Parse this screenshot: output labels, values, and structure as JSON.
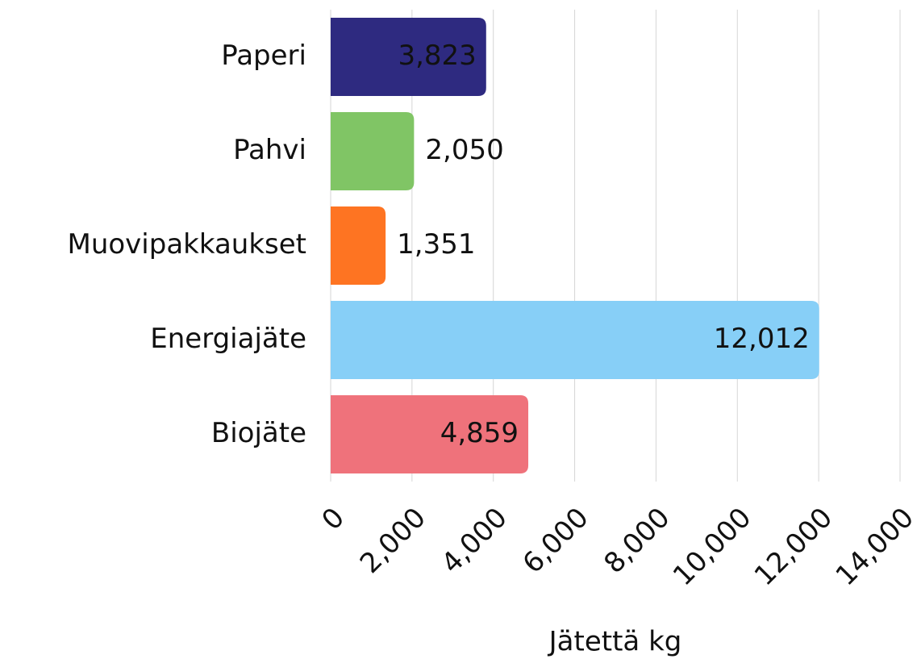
{
  "chart_data": {
    "type": "bar",
    "orientation": "horizontal",
    "categories": [
      "Paperi",
      "Pahvi",
      "Muovipakkaukset",
      "Energiajäte",
      "Biojäte"
    ],
    "values": [
      3823,
      2050,
      1351,
      12012,
      4859
    ],
    "value_labels": [
      "3,823",
      "2,050",
      "1,351",
      "12,012",
      "4,859"
    ],
    "colors": [
      "#2e2a80",
      "#80c565",
      "#fe7422",
      "#87cff7",
      "#ef727b"
    ],
    "xlabel": "Jätettä kg",
    "xlim": [
      0,
      14000
    ],
    "xticks": [
      0,
      {
        "value": 2000,
        "label": "2,000"
      },
      {
        "value": 4000,
        "label": "4,000"
      },
      {
        "value": 6000,
        "label": "6,000"
      },
      {
        "value": 8000,
        "label": "8,000"
      },
      {
        "value": 10000,
        "label": "10,000"
      },
      {
        "value": 12000,
        "label": "12,000"
      },
      {
        "value": 14000,
        "label": "14,000"
      }
    ],
    "grid": true
  }
}
